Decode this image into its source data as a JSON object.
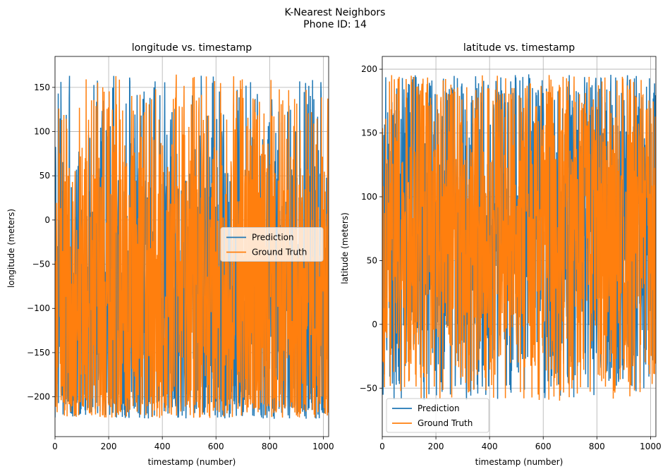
{
  "figure": {
    "title_line1": "K-Nearest Neighbors",
    "title_line2": "Phone ID: 14"
  },
  "colors": {
    "prediction": "#1f77b4",
    "ground_truth": "#ff7f0e",
    "grid": "#b0b0b0"
  },
  "chart_data": [
    {
      "type": "line",
      "title": "longitude vs. timestamp",
      "xlabel": "timestamp (number)",
      "ylabel": "longitude (meters)",
      "xlim": [
        0,
        1020
      ],
      "ylim": [
        -245,
        185
      ],
      "xticks": [
        0,
        200,
        400,
        600,
        800,
        1000
      ],
      "xtick_labels": [
        "0",
        "200",
        "400",
        "600",
        "800",
        "1000"
      ],
      "yticks": [
        -200,
        -150,
        -100,
        -50,
        0,
        50,
        100,
        150
      ],
      "ytick_labels": [
        "−200",
        "−150",
        "−100",
        "−50",
        "0",
        "50",
        "100",
        "150"
      ],
      "grid": true,
      "legend": {
        "placement": "center-right",
        "entries": [
          "Prediction",
          "Ground Truth"
        ]
      },
      "series": [
        {
          "name": "Prediction",
          "color": "#1f77b4",
          "summary": {
            "n_points": 1020,
            "x_range": [
              0,
              1019
            ],
            "y_min": -225,
            "y_max": 166
          }
        },
        {
          "name": "Ground Truth",
          "color": "#ff7f0e",
          "summary": {
            "n_points": 1020,
            "x_range": [
              0,
              1019
            ],
            "y_min": -224,
            "y_max": 166
          }
        }
      ]
    },
    {
      "type": "line",
      "title": "latitude vs. timestamp",
      "xlabel": "timestamp (number)",
      "ylabel": "latitude (meters)",
      "xlim": [
        0,
        1020
      ],
      "ylim": [
        -88,
        210
      ],
      "xticks": [
        0,
        200,
        400,
        600,
        800,
        1000
      ],
      "xtick_labels": [
        "0",
        "200",
        "400",
        "600",
        "800",
        "1000"
      ],
      "yticks": [
        -50,
        0,
        50,
        100,
        150,
        200
      ],
      "ytick_labels": [
        "−50",
        "0",
        "50",
        "100",
        "150",
        "200"
      ],
      "grid": true,
      "legend": {
        "placement": "lower-left",
        "entries": [
          "Prediction",
          "Ground Truth"
        ]
      },
      "series": [
        {
          "name": "Prediction",
          "color": "#1f77b4",
          "summary": {
            "n_points": 1020,
            "x_range": [
              0,
              1019
            ],
            "y_min": -60,
            "y_max": 196
          }
        },
        {
          "name": "Ground Truth",
          "color": "#ff7f0e",
          "summary": {
            "n_points": 1020,
            "x_range": [
              0,
              1019
            ],
            "y_min": -60,
            "y_max": 196
          }
        }
      ]
    }
  ]
}
